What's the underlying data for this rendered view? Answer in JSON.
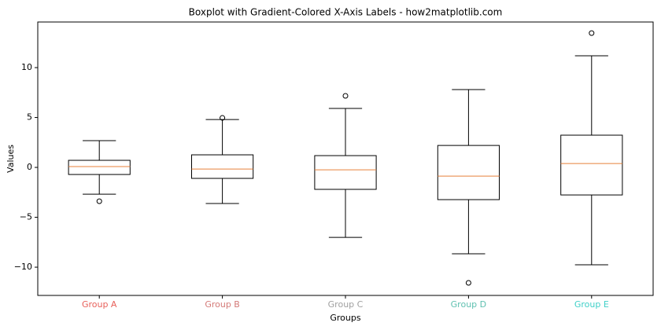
{
  "chart_data": {
    "type": "boxplot",
    "title": "Boxplot with Gradient-Colored X-Axis Labels - how2matplotlib.com",
    "xlabel": "Groups",
    "ylabel": "Values",
    "categories": [
      "Group A",
      "Group B",
      "Group C",
      "Group D",
      "Group E"
    ],
    "label_colors": [
      "#e8605a",
      "#d47a78",
      "#a0a0a0",
      "#5fc0b0",
      "#40d0c8"
    ],
    "box_color": "#000000",
    "median_color": "#e8803a",
    "boxes": [
      {
        "whislo": -2.68,
        "q1": -0.71,
        "med": 0.08,
        "q3": 0.71,
        "whishi": 2.68,
        "fliers": [
          -3.39
        ]
      },
      {
        "whislo": -3.62,
        "q1": -1.1,
        "med": -0.16,
        "q3": 1.26,
        "whishi": 4.8,
        "fliers": [
          4.96
        ]
      },
      {
        "whislo": -7.01,
        "q1": -2.2,
        "med": -0.24,
        "q3": 1.18,
        "whishi": 5.91,
        "fliers": [
          7.17
        ]
      },
      {
        "whislo": -8.66,
        "q1": -3.23,
        "med": -0.87,
        "q3": 2.2,
        "whishi": 7.8,
        "fliers": [
          -11.57
        ]
      },
      {
        "whislo": -9.76,
        "q1": -2.76,
        "med": 0.39,
        "q3": 3.23,
        "whishi": 11.18,
        "fliers": [
          13.46
        ]
      }
    ],
    "ylim": [
      -12.83,
      14.57
    ],
    "yticks": [
      {
        "value": -10,
        "label": "−10"
      },
      {
        "value": -5,
        "label": "−5"
      },
      0,
      5,
      10
    ]
  }
}
